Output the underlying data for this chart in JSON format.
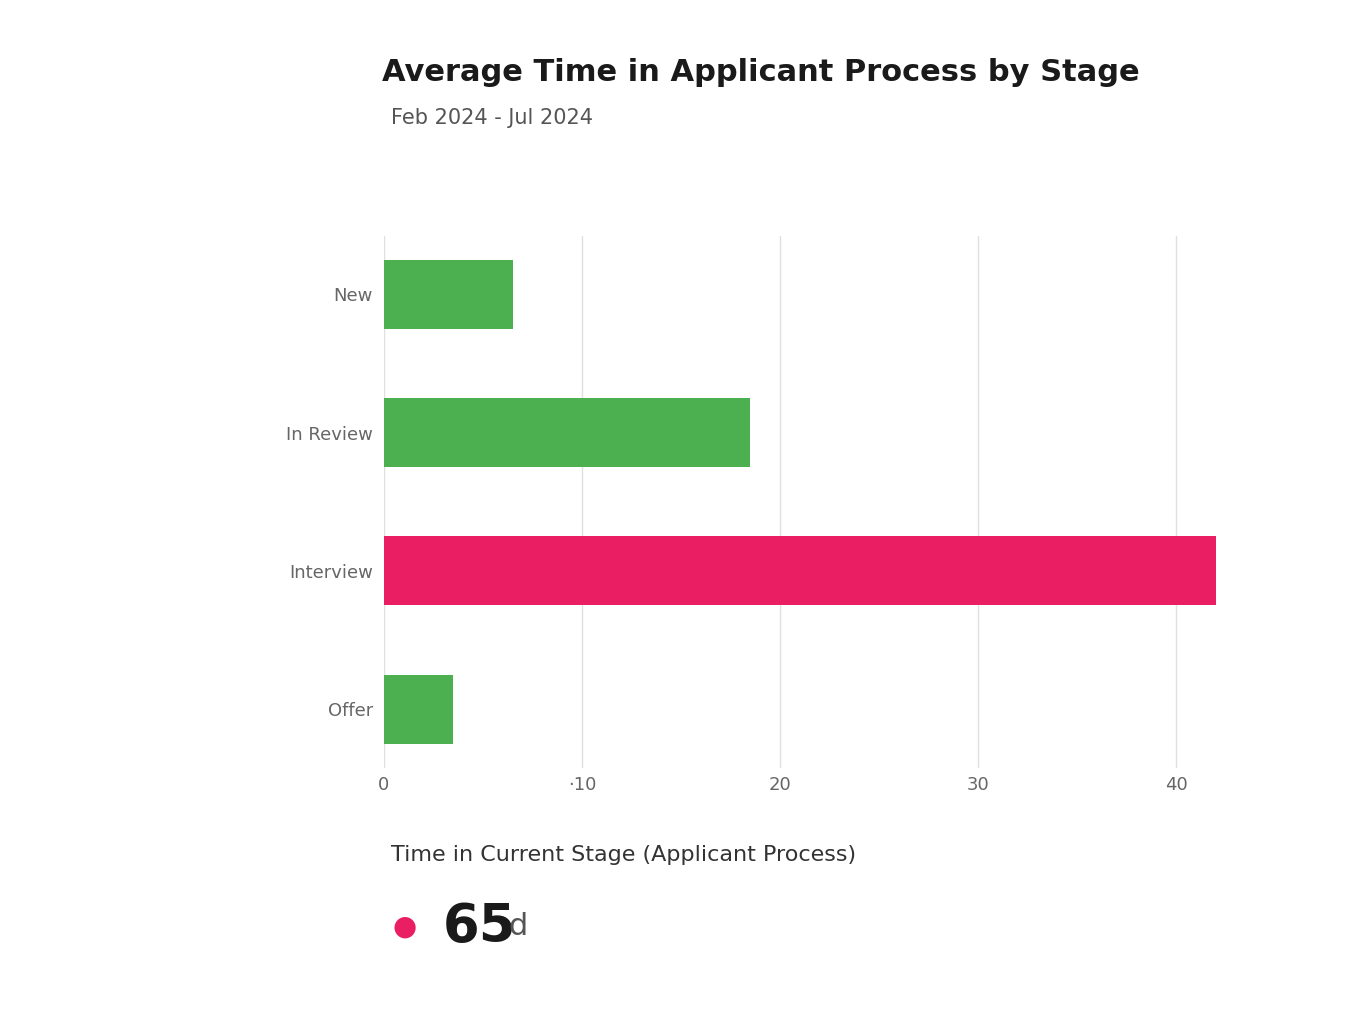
{
  "title": "Average Time in Applicant Process by Stage",
  "subtitle": "Feb 2024 - Jul 2024",
  "categories": [
    "New",
    "In Review",
    "Interview",
    "Offer"
  ],
  "values": [
    6.5,
    18.5,
    42.0,
    3.5
  ],
  "bar_colors": [
    "#4CAF50",
    "#4CAF50",
    "#E91E63",
    "#4CAF50"
  ],
  "background_color": "#ffffff",
  "xlim": [
    0,
    45
  ],
  "xtick_values": [
    0,
    10,
    20,
    30,
    40
  ],
  "xtick_labels": [
    "0",
    "·10",
    "20",
    "30",
    "40"
  ],
  "grid_color": "#e0e0e0",
  "title_fontsize": 22,
  "subtitle_fontsize": 15,
  "tick_label_fontsize": 13,
  "yticklabel_color": "#666666",
  "xticklabel_color": "#666666",
  "legend_label": "Time in Current Stage (Applicant Process)",
  "legend_value": "65",
  "legend_unit": "d",
  "legend_dot_color": "#E91E63",
  "legend_value_fontsize": 38,
  "legend_unit_fontsize": 22,
  "legend_label_fontsize": 16,
  "bar_height": 0.5
}
